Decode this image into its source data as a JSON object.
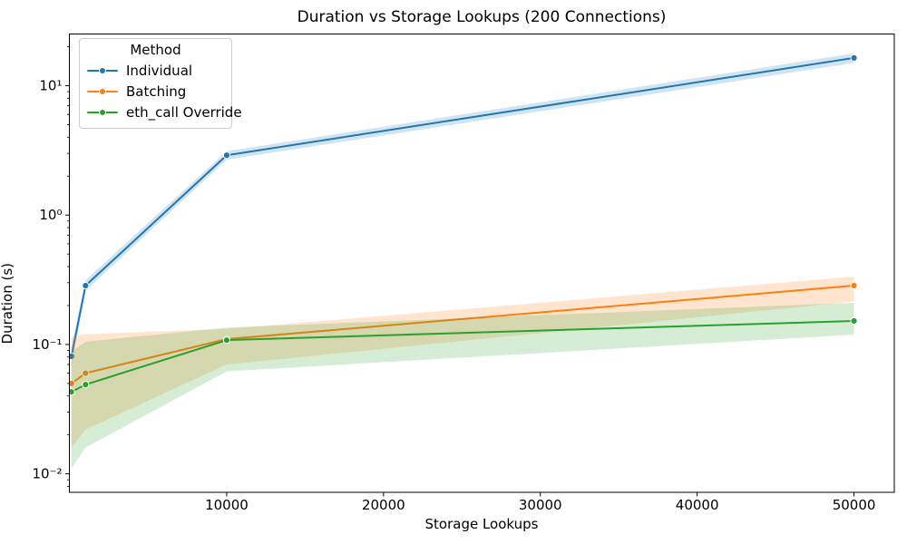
{
  "chart_data": {
    "type": "line",
    "title": "Duration vs Storage Lookups (200 Connections)",
    "xlabel": "Storage Lookups",
    "ylabel": "Duration (s)",
    "x_scale": "linear",
    "y_scale": "log",
    "xlim": [
      -30,
      52570
    ],
    "ylim": [
      0.0072,
      25.1
    ],
    "grid": false,
    "band_alpha": 0.2,
    "line_width": 2,
    "marker": "o",
    "legend": {
      "title": "Method",
      "position": "upper left"
    },
    "x": [
      100,
      1000,
      10000,
      50000
    ],
    "series": [
      {
        "name": "Individual",
        "color": "#1f77b4",
        "values": [
          0.081,
          0.285,
          2.9,
          16.4
        ],
        "ci_low": [
          0.068,
          0.26,
          2.68,
          15.0
        ],
        "ci_high": [
          0.095,
          0.315,
          3.12,
          17.8
        ]
      },
      {
        "name": "Batching",
        "color": "#ff7f0e",
        "values": [
          0.05,
          0.06,
          0.11,
          0.285
        ],
        "ci_low": [
          0.016,
          0.022,
          0.07,
          0.215
        ],
        "ci_high": [
          0.115,
          0.12,
          0.132,
          0.335
        ]
      },
      {
        "name": "eth_call Override",
        "color": "#2ca02c",
        "values": [
          0.043,
          0.049,
          0.108,
          0.152
        ],
        "ci_low": [
          0.011,
          0.016,
          0.062,
          0.119
        ],
        "ci_high": [
          0.088,
          0.105,
          0.135,
          0.21
        ]
      }
    ],
    "x_ticks": [
      {
        "v": 10000,
        "label": "10000"
      },
      {
        "v": 20000,
        "label": "20000"
      },
      {
        "v": 30000,
        "label": "30000"
      },
      {
        "v": 40000,
        "label": "40000"
      },
      {
        "v": 50000,
        "label": "50000"
      }
    ],
    "y_ticks": [
      {
        "v": 10,
        "label": "10¹"
      },
      {
        "v": 1,
        "label": "10⁰"
      },
      {
        "v": 0.1,
        "label": "10⁻¹"
      },
      {
        "v": 0.01,
        "label": "10⁻²"
      }
    ],
    "colors": {
      "spine": "#000000",
      "text": "#000000",
      "legend_border": "#cccccc",
      "background": "#ffffff"
    }
  }
}
